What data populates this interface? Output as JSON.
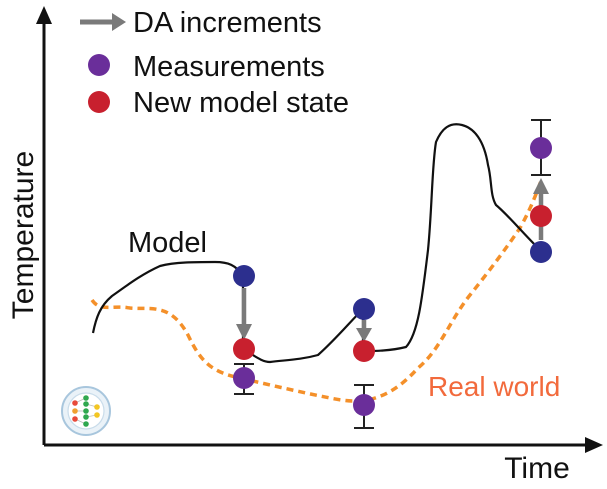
{
  "axes": {
    "y_label": "Temperature",
    "x_label": "Time"
  },
  "legend": {
    "increments_label": "DA increments",
    "measurements_label": "Measurements",
    "new_state_label": "New model state"
  },
  "annotations": {
    "model_label": "Model",
    "real_world_label": "Real world"
  },
  "colors": {
    "axis": "#111111",
    "model_line": "#111111",
    "real_world": "#f4902a",
    "real_world_text": "#f26a3c",
    "increment_arrow": "#7a7a7a",
    "forecast_point": "#2c2f8e",
    "measurement_point": "#6a2e9a",
    "new_state_point": "#c8202e",
    "error_bar": "#222222"
  },
  "icons": {
    "logo": "neural-network-logo-icon"
  }
}
